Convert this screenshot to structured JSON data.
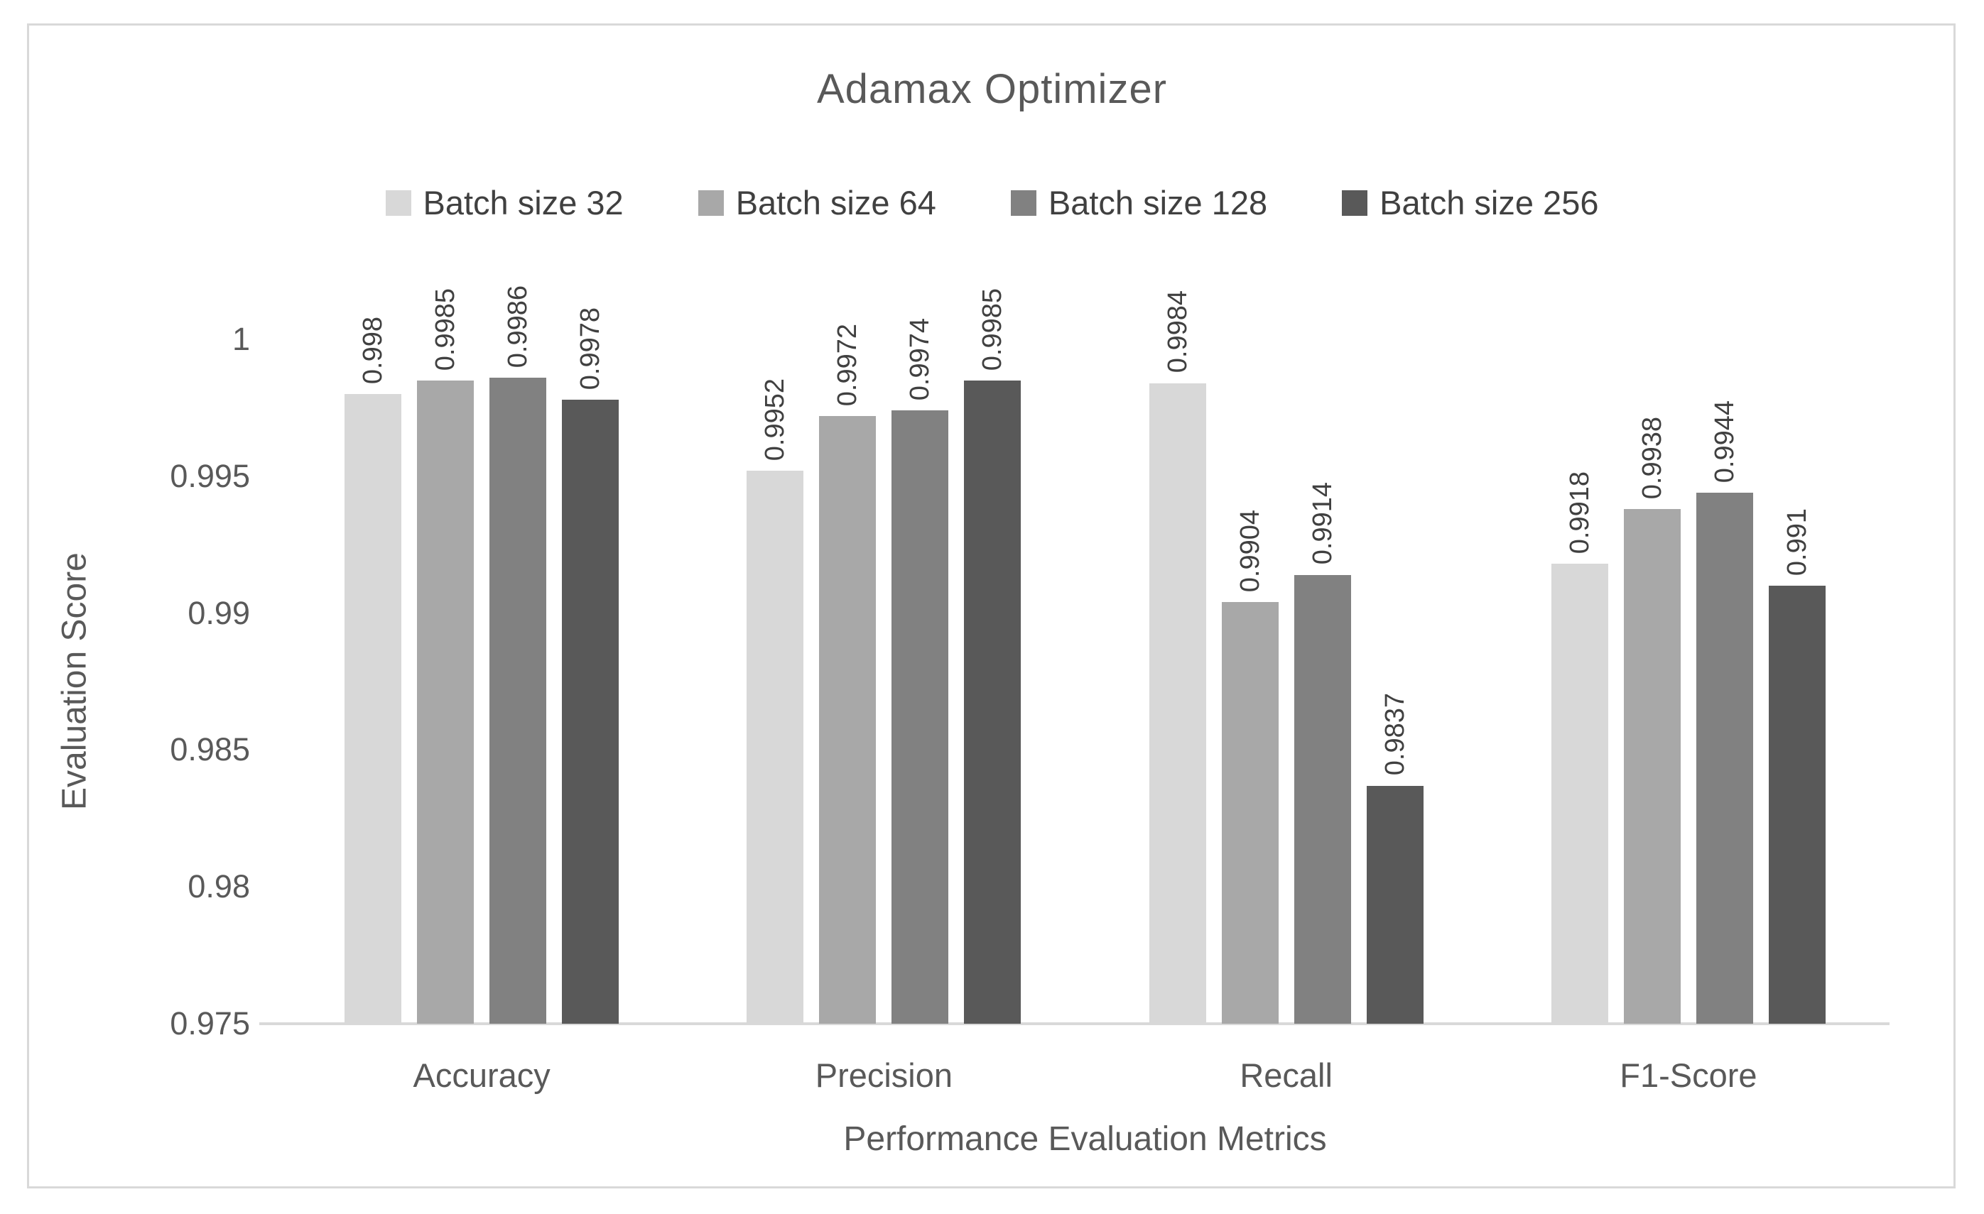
{
  "title": "Adamax Optimizer",
  "colors": {
    "series_32": "#d8d8d8",
    "series_64": "#a8a8a8",
    "series_128": "#818181",
    "series_256": "#595959",
    "axis_line": "#d9d9d9",
    "text_primary": "#595959",
    "text_labels": "#404040"
  },
  "chart_data": {
    "type": "bar",
    "title": "Adamax Optimizer",
    "xlabel": "Performance Evaluation Metrics",
    "ylabel": "Evaluation Score",
    "categories": [
      "Accuracy",
      "Precision",
      "Recall",
      "F1-Score"
    ],
    "series": [
      {
        "name": "Batch size 32",
        "color": "#d8d8d8",
        "values": [
          0.998,
          0.9952,
          0.9984,
          0.9918
        ],
        "labels": [
          "0.998",
          "0.9952",
          "0.9984",
          "0.9918"
        ]
      },
      {
        "name": "Batch size 64",
        "color": "#a8a8a8",
        "values": [
          0.9985,
          0.9972,
          0.9904,
          0.9938
        ],
        "labels": [
          "0.9985",
          "0.9972",
          "0.9904",
          "0.9938"
        ]
      },
      {
        "name": "Batch size 128",
        "color": "#818181",
        "values": [
          0.9986,
          0.9974,
          0.9914,
          0.9944
        ],
        "labels": [
          "0.9986",
          "0.9974",
          "0.9914",
          "0.9944"
        ]
      },
      {
        "name": "Batch size 256",
        "color": "#595959",
        "values": [
          0.9978,
          0.9985,
          0.9837,
          0.991
        ],
        "labels": [
          "0.9978",
          "0.9985",
          "0.9837",
          "0.991"
        ]
      }
    ],
    "ylim": [
      0.975,
      1.0
    ],
    "yticks": [
      {
        "value": 1.0,
        "label": "1"
      },
      {
        "value": 0.995,
        "label": "0.995"
      },
      {
        "value": 0.99,
        "label": "0.99"
      },
      {
        "value": 0.985,
        "label": "0.985"
      },
      {
        "value": 0.98,
        "label": "0.98"
      },
      {
        "value": 0.975,
        "label": "0.975"
      }
    ],
    "grid": false,
    "legend_position": "top",
    "data_labels_rotation": "vertical"
  }
}
